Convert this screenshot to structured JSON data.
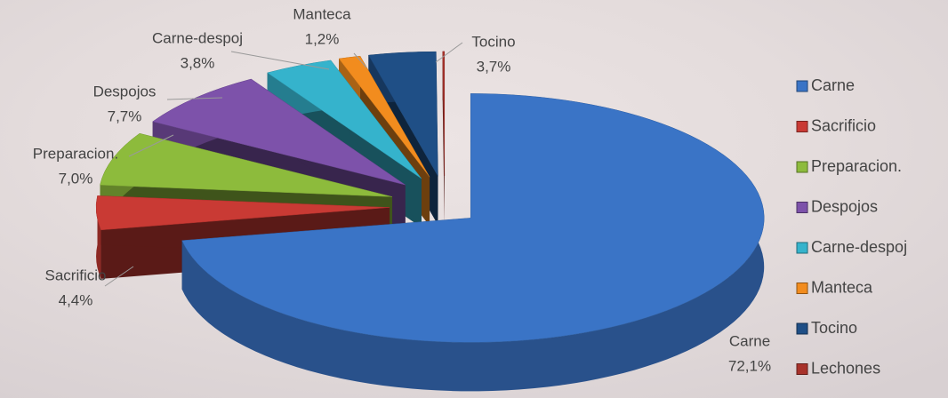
{
  "chart_data": {
    "type": "pie3d",
    "categories": [
      "Carne",
      "Sacrificio",
      "Preparacion.",
      "Despojos",
      "Carne-despoj",
      "Manteca",
      "Tocino",
      "Lechones"
    ],
    "values": [
      72.1,
      4.4,
      7.0,
      7.7,
      3.8,
      1.2,
      3.7,
      0.1
    ],
    "value_labels": [
      "72,1%",
      "4,4%",
      "7,0%",
      "7,7%",
      "3,8%",
      "1,2%",
      "3,7%",
      null
    ],
    "colors": [
      "#3a74c6",
      "#c93a34",
      "#8dbb3c",
      "#7d52aa",
      "#35b3cc",
      "#f28c1e",
      "#1f4f86",
      "#a8322b"
    ],
    "legend": "right"
  }
}
